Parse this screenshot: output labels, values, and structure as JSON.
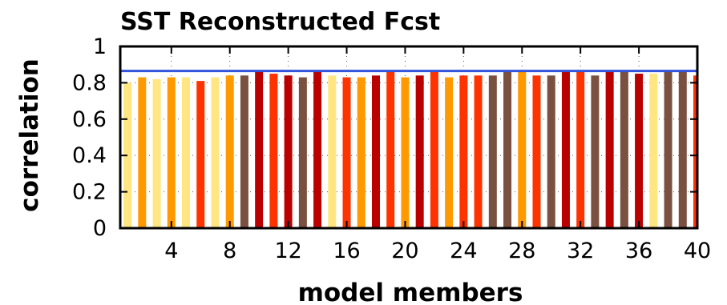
{
  "chart_data": {
    "type": "bar",
    "title": "SST Reconstructed Fcst",
    "xlabel": "model members",
    "ylabel": "correlation",
    "xlim": [
      0.5,
      40
    ],
    "ylim": [
      0,
      1
    ],
    "x_ticks": [
      4,
      8,
      12,
      16,
      20,
      24,
      28,
      32,
      36,
      40
    ],
    "y_ticks": [
      0,
      0.2,
      0.4,
      0.6,
      0.8,
      1
    ],
    "y_tick_labels": [
      "0",
      "0.2",
      "0.4",
      "0.6",
      "0.8",
      "1"
    ],
    "grid": "dotted",
    "reference_line": {
      "value": 0.865,
      "color": "#3355dd"
    },
    "group_colors": {
      "light_yellow": "#ffe680",
      "orange": "#ff9900",
      "red_orange": "#ff3300",
      "dark_red": "#bb0000",
      "brown": "#7a5040"
    },
    "x": [
      1,
      2,
      3,
      4,
      5,
      6,
      7,
      8,
      9,
      10,
      11,
      12,
      13,
      14,
      15,
      16,
      17,
      18,
      19,
      20,
      21,
      22,
      23,
      24,
      25,
      26,
      27,
      28,
      29,
      30,
      31,
      32,
      33,
      34,
      35,
      36,
      37,
      38,
      39,
      40
    ],
    "values": [
      0.8,
      0.83,
      0.82,
      0.83,
      0.83,
      0.81,
      0.83,
      0.84,
      0.84,
      0.86,
      0.85,
      0.84,
      0.83,
      0.86,
      0.84,
      0.83,
      0.83,
      0.84,
      0.86,
      0.83,
      0.84,
      0.86,
      0.83,
      0.84,
      0.84,
      0.84,
      0.86,
      0.86,
      0.84,
      0.84,
      0.86,
      0.86,
      0.84,
      0.86,
      0.87,
      0.85,
      0.85,
      0.86,
      0.86,
      0.84
    ],
    "bar_groups": [
      "light_yellow",
      "orange",
      "light_yellow",
      "orange",
      "light_yellow",
      "red_orange",
      "light_yellow",
      "orange",
      "brown",
      "dark_red",
      "red_orange",
      "dark_red",
      "brown",
      "dark_red",
      "light_yellow",
      "red_orange",
      "orange",
      "dark_red",
      "red_orange",
      "orange",
      "dark_red",
      "red_orange",
      "orange",
      "red_orange",
      "red_orange",
      "brown",
      "brown",
      "orange",
      "red_orange",
      "brown",
      "dark_red",
      "red_orange",
      "brown",
      "dark_red",
      "brown",
      "dark_red",
      "light_yellow",
      "brown",
      "brown",
      "red_orange"
    ]
  }
}
